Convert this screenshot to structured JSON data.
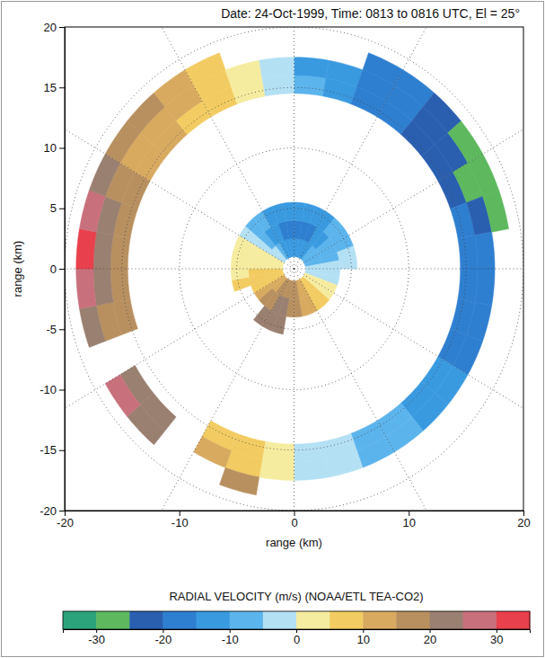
{
  "chart_data": {
    "type": "polar_heatmap",
    "title": "Date: 24-Oct-1999, Time: 0813 to 0816 UTC, El = 25°",
    "x_label": "range (km)",
    "y_label": "range (km)",
    "xlim": [
      -20,
      20
    ],
    "ylim": [
      -20,
      20
    ],
    "xticks": [
      -20,
      -10,
      0,
      10,
      20
    ],
    "yticks": [
      -20,
      -15,
      -10,
      -5,
      0,
      5,
      10,
      15,
      20
    ],
    "grid": true,
    "cells": {
      "azimuth_bins": [
        0,
        10,
        20,
        30,
        40,
        50,
        60,
        70,
        80,
        90,
        100,
        110,
        120,
        130,
        140,
        150,
        160,
        170,
        180,
        190,
        200,
        210,
        220,
        230,
        240,
        250,
        260,
        270,
        280,
        290,
        300,
        310,
        320,
        330,
        340,
        350,
        360
      ],
      "range_bins": [
        1,
        2.5,
        4,
        5.5,
        14.5,
        16,
        17.5,
        19
      ],
      "values": [
        [
          -15,
          -18,
          -15,
          null,
          -10,
          -12,
          null
        ],
        [
          -15,
          -18,
          -15,
          null,
          -15,
          -15,
          null
        ],
        [
          -14,
          -16,
          -14,
          null,
          -18,
          -18,
          -18
        ],
        [
          -12,
          -15,
          -12,
          null,
          -20,
          -20,
          -20
        ],
        [
          -10,
          -12,
          -10,
          null,
          -22,
          -22,
          -22
        ],
        [
          -10,
          -10,
          -8,
          null,
          -22,
          -24,
          -28
        ],
        [
          -8,
          -8,
          -6,
          null,
          -22,
          -26,
          -30
        ],
        [
          -6,
          -6,
          -5,
          null,
          -20,
          -22,
          -26
        ],
        [
          -5,
          -4,
          -3,
          null,
          -20,
          -20,
          null
        ],
        [
          -4,
          -3,
          null,
          null,
          -20,
          -20,
          null
        ],
        [
          -2,
          -2,
          null,
          null,
          -18,
          -18,
          null
        ],
        [
          2,
          2,
          null,
          null,
          -16,
          -16,
          null
        ],
        [
          4,
          4,
          null,
          null,
          -15,
          -14,
          null
        ],
        [
          6,
          5,
          null,
          null,
          -12,
          -12,
          null
        ],
        [
          8,
          7,
          null,
          null,
          -10,
          -10,
          null
        ],
        [
          10,
          10,
          null,
          null,
          -8,
          -8,
          null
        ],
        [
          12,
          14,
          null,
          null,
          -5,
          -5,
          null
        ],
        [
          15,
          16,
          null,
          null,
          -2,
          -3,
          null
        ],
        [
          16,
          18,
          null,
          null,
          3,
          3,
          null
        ],
        [
          18,
          20,
          22,
          null,
          5,
          6,
          15
        ],
        [
          18,
          20,
          22,
          null,
          8,
          10,
          null
        ],
        [
          15,
          18,
          20,
          null,
          null,
          null,
          null
        ],
        [
          12,
          15,
          null,
          null,
          null,
          20,
          24
        ],
        [
          10,
          12,
          null,
          null,
          null,
          22,
          28
        ],
        [
          8,
          8,
          null,
          null,
          null,
          null,
          null
        ],
        [
          6,
          6,
          5,
          null,
          16,
          18,
          22
        ],
        [
          5,
          5,
          4,
          null,
          18,
          20,
          28
        ],
        [
          4,
          4,
          3,
          null,
          18,
          22,
          30
        ],
        [
          3,
          3,
          2,
          null,
          18,
          20,
          25
        ],
        [
          2,
          2,
          1,
          null,
          15,
          18,
          22
        ],
        [
          -2,
          -3,
          -2,
          null,
          12,
          14,
          18
        ],
        [
          -5,
          -8,
          -6,
          null,
          10,
          12,
          15
        ],
        [
          -8,
          -12,
          -10,
          null,
          8,
          10,
          12
        ],
        [
          -12,
          -15,
          -12,
          null,
          5,
          6,
          8
        ],
        [
          -14,
          -18,
          -15,
          null,
          2,
          3,
          null
        ],
        [
          -15,
          -18,
          -15,
          null,
          -3,
          -4,
          null
        ]
      ]
    },
    "colorbar": {
      "label": "RADIAL VELOCITY (m/s)  (NOAA/ETL TEA-CO2)",
      "range": [
        -35,
        35
      ],
      "ticks": [
        -30,
        -20,
        -10,
        0,
        10,
        20,
        30
      ],
      "colors": [
        "#2ca37a",
        "#5db85e",
        "#2a5fb0",
        "#2f7fd0",
        "#3a9ae0",
        "#5cb4ec",
        "#b4e0f4",
        "#f6eca0",
        "#f2cc62",
        "#d8aa60",
        "#b89060",
        "#9a8070",
        "#c8707c",
        "#e8404c"
      ]
    }
  }
}
